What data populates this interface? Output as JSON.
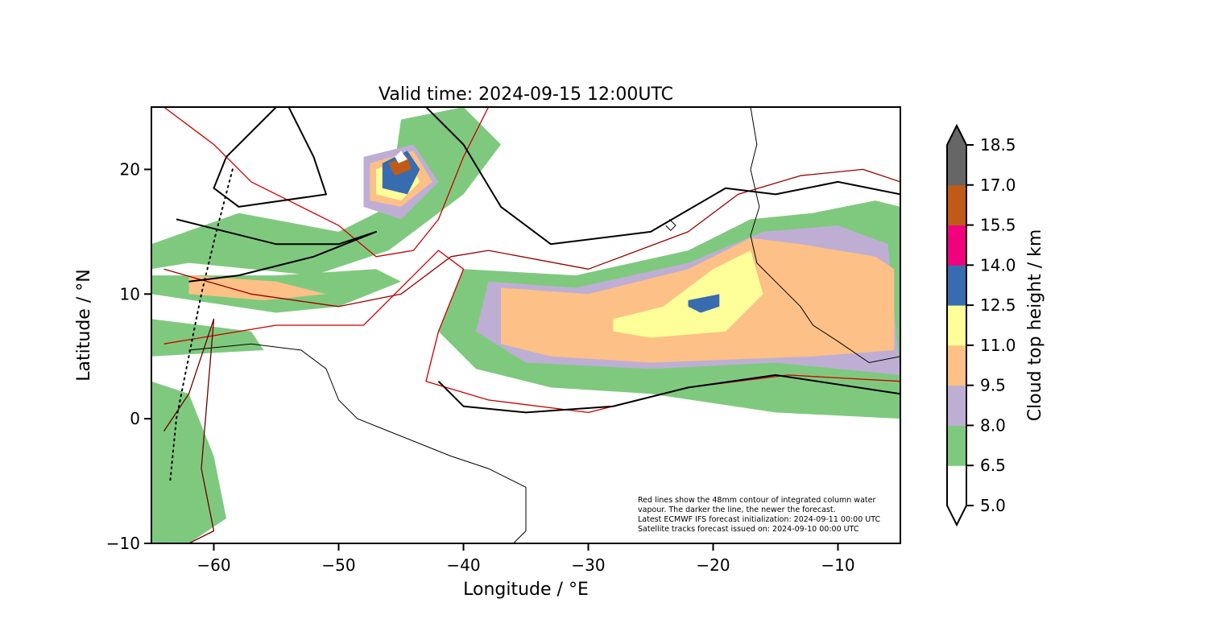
{
  "title": "Valid time: 2024-09-15 12:00UTC",
  "xlabel": "Longitude / °E",
  "ylabel": "Latitude / °N",
  "note_lines": [
    "Red lines show the 48mm contour of integrated column water",
    "vapour. The darker the line, the newer the forecast.",
    "Latest ECMWF IFS forecast initialization: 2024-09-11 00:00 UTC",
    "Satellite tracks forecast issued on: 2024-09-10 00:00 UTC"
  ],
  "chart_data": {
    "type": "heatmap",
    "title": "Valid time: 2024-09-15 12:00UTC",
    "xlabel": "Longitude / °E",
    "ylabel": "Latitude / °N",
    "xlim": [
      -65,
      -5
    ],
    "ylim": [
      -10,
      25
    ],
    "x_ticks": [
      -60,
      -50,
      -40,
      -30,
      -20,
      -10
    ],
    "y_ticks": [
      -10,
      0,
      10,
      20
    ],
    "x_tick_labels": [
      "−60",
      "−50",
      "−40",
      "−30",
      "−20",
      "−10"
    ],
    "y_tick_labels": [
      "−10",
      "0",
      "10",
      "20"
    ],
    "colorbar": {
      "label": "Cloud top height / km",
      "levels": [
        5.0,
        6.5,
        8.0,
        9.5,
        11.0,
        12.5,
        14.0,
        15.5,
        17.0,
        18.5
      ],
      "level_labels": [
        "5.0",
        "6.5",
        "8.0",
        "9.5",
        "11.0",
        "12.5",
        "14.0",
        "15.5",
        "17.0",
        "18.5"
      ],
      "colors": [
        "#ffffff",
        "#7fc97f",
        "#beaed4",
        "#fdc086",
        "#ffff99",
        "#386cb0",
        "#f0027f",
        "#bf5b17",
        "#666666"
      ],
      "extend": "both"
    },
    "cloud_regions": [
      {
        "level_km": 6.5,
        "polygon": [
          [
            -65,
            14
          ],
          [
            -58,
            16.5
          ],
          [
            -50,
            15
          ],
          [
            -46,
            17
          ],
          [
            -45,
            24
          ],
          [
            -40,
            25
          ],
          [
            -37,
            22
          ],
          [
            -40,
            18
          ],
          [
            -46,
            13.5
          ],
          [
            -52,
            11.5
          ],
          [
            -62,
            12.5
          ],
          [
            -65,
            12
          ]
        ]
      },
      {
        "level_km": 6.5,
        "polygon": [
          [
            -65,
            10
          ],
          [
            -55,
            8.5
          ],
          [
            -50,
            9
          ],
          [
            -45,
            11
          ],
          [
            -47,
            12
          ],
          [
            -55,
            11.5
          ],
          [
            -65,
            11.5
          ]
        ]
      },
      {
        "level_km": 6.5,
        "polygon": [
          [
            -65,
            8
          ],
          [
            -57,
            7
          ],
          [
            -56,
            5.5
          ],
          [
            -65,
            5
          ]
        ]
      },
      {
        "level_km": 6.5,
        "polygon": [
          [
            -65,
            3
          ],
          [
            -62,
            2
          ],
          [
            -60,
            -3
          ],
          [
            -59,
            -8
          ],
          [
            -62,
            -10
          ],
          [
            -65,
            -10
          ]
        ]
      },
      {
        "level_km": 6.5,
        "polygon": [
          [
            -40,
            12
          ],
          [
            -31,
            11.5
          ],
          [
            -22,
            13.5
          ],
          [
            -17,
            16
          ],
          [
            -12,
            16.5
          ],
          [
            -7,
            17.5
          ],
          [
            -5,
            17
          ],
          [
            -5,
            0
          ],
          [
            -15,
            0.5
          ],
          [
            -25,
            2
          ],
          [
            -33,
            2.5
          ],
          [
            -39,
            4
          ],
          [
            -42,
            7
          ]
        ]
      },
      {
        "level_km": 8.0,
        "polygon": [
          [
            -38,
            11
          ],
          [
            -31,
            10.5
          ],
          [
            -22,
            12.5
          ],
          [
            -16,
            15
          ],
          [
            -10,
            15.5
          ],
          [
            -6,
            14
          ],
          [
            -5,
            3.5
          ],
          [
            -15,
            4.5
          ],
          [
            -25,
            4
          ],
          [
            -35,
            4.5
          ],
          [
            -39,
            7
          ]
        ]
      },
      {
        "level_km": 8.0,
        "polygon": [
          [
            -48,
            21
          ],
          [
            -44,
            22
          ],
          [
            -42,
            19
          ],
          [
            -45,
            16
          ],
          [
            -48,
            17
          ]
        ]
      },
      {
        "level_km": 9.5,
        "polygon": [
          [
            -37,
            10.5
          ],
          [
            -30,
            10
          ],
          [
            -22,
            12
          ],
          [
            -17,
            14.5
          ],
          [
            -13,
            14
          ],
          [
            -7,
            13
          ],
          [
            -5.5,
            12
          ],
          [
            -5.5,
            5.5
          ],
          [
            -12,
            5
          ],
          [
            -25,
            4.5
          ],
          [
            -33,
            5
          ],
          [
            -37,
            6
          ]
        ]
      },
      {
        "level_km": 9.5,
        "polygon": [
          [
            -47.5,
            20.5
          ],
          [
            -44,
            21.5
          ],
          [
            -42.5,
            19
          ],
          [
            -45,
            17
          ],
          [
            -47.5,
            17.5
          ]
        ]
      },
      {
        "level_km": 9.5,
        "polygon": [
          [
            -62,
            11.5
          ],
          [
            -55,
            11
          ],
          [
            -51,
            10
          ],
          [
            -56,
            9.5
          ],
          [
            -62,
            10
          ]
        ]
      },
      {
        "level_km": 11.0,
        "polygon": [
          [
            -28,
            8
          ],
          [
            -24,
            9
          ],
          [
            -20,
            12
          ],
          [
            -17,
            13.5
          ],
          [
            -16,
            10
          ],
          [
            -19,
            7
          ],
          [
            -25,
            6.5
          ],
          [
            -28,
            7
          ]
        ]
      },
      {
        "level_km": 11.0,
        "polygon": [
          [
            -47,
            20
          ],
          [
            -44.5,
            21
          ],
          [
            -43.5,
            19
          ],
          [
            -45,
            17.5
          ],
          [
            -47,
            18
          ]
        ]
      },
      {
        "level_km": 12.5,
        "polygon": [
          [
            -46.5,
            20.5
          ],
          [
            -44.5,
            21.5
          ],
          [
            -43.5,
            20
          ],
          [
            -44.5,
            18
          ],
          [
            -46.5,
            18.5
          ]
        ]
      },
      {
        "level_km": 12.5,
        "polygon": [
          [
            -22,
            9.5
          ],
          [
            -19.5,
            10
          ],
          [
            -19.5,
            9
          ],
          [
            -21,
            8.5
          ],
          [
            -22,
            9
          ]
        ]
      },
      {
        "level_km": 15.5,
        "polygon": [
          [
            -46,
            20.5
          ],
          [
            -44.5,
            21
          ],
          [
            -44.2,
            20
          ],
          [
            -45.5,
            19.5
          ]
        ]
      },
      {
        "level_km": 18.5,
        "polygon": [
          [
            -45.5,
            21
          ],
          [
            -45,
            21.5
          ],
          [
            -44.5,
            20.8
          ],
          [
            -45.2,
            20.5
          ]
        ]
      }
    ],
    "overlays": [
      {
        "kind": "ECMWF IFS forecast 48mm integrated column water vapour contour",
        "color": "#cc0000",
        "points": [
          [
            -64,
            25
          ],
          [
            -60,
            22
          ],
          [
            -57,
            19
          ],
          [
            -50,
            15.5
          ],
          [
            -47,
            13
          ],
          [
            -44,
            13.5
          ],
          [
            -42,
            16
          ],
          [
            -40,
            21
          ],
          [
            -38,
            25
          ]
        ]
      },
      {
        "kind": "ECMWF IFS forecast 48mm integrated column water vapour contour",
        "color": "#990000",
        "points": [
          [
            -64,
            12
          ],
          [
            -57,
            10
          ],
          [
            -50,
            9
          ],
          [
            -45,
            10
          ],
          [
            -41,
            13
          ],
          [
            -38,
            13.5
          ],
          [
            -30,
            12
          ],
          [
            -22,
            15
          ],
          [
            -18,
            18
          ],
          [
            -13,
            19.5
          ],
          [
            -8,
            20
          ],
          [
            -5,
            19
          ]
        ]
      },
      {
        "kind": "ECMWF IFS forecast 48mm integrated column water vapour contour",
        "color": "#cc0000",
        "points": [
          [
            -64,
            6
          ],
          [
            -55,
            7.5
          ],
          [
            -48,
            7.5
          ],
          [
            -44,
            11.5
          ],
          [
            -42,
            13.5
          ],
          [
            -40,
            12
          ],
          [
            -42,
            7
          ],
          [
            -43,
            3
          ],
          [
            -38,
            1.5
          ],
          [
            -30,
            0.5
          ],
          [
            -22,
            2.5
          ],
          [
            -14,
            3.5
          ],
          [
            -5,
            3
          ]
        ]
      },
      {
        "kind": "ECMWF IFS forecast 48mm integrated column water vapour contour",
        "color": "#660000",
        "points": [
          [
            -64,
            -1
          ],
          [
            -62,
            2
          ],
          [
            -61,
            5
          ],
          [
            -60,
            8
          ],
          [
            -61,
            -4
          ],
          [
            -60,
            -9
          ],
          [
            -62,
            -10
          ]
        ]
      },
      {
        "kind": "ECMWF IFS forecast 48mm integrated column water vapour contour",
        "color": "#000000",
        "points": [
          [
            -63,
            16
          ],
          [
            -55,
            14
          ],
          [
            -50,
            14
          ],
          [
            -47,
            15
          ],
          [
            -52,
            13
          ],
          [
            -58,
            11.5
          ],
          [
            -62,
            11
          ]
        ]
      },
      {
        "kind": "ECMWF IFS forecast 48mm integrated column water vapour contour",
        "color": "#000000",
        "points": [
          [
            -42,
            3
          ],
          [
            -40,
            1
          ],
          [
            -35,
            0.5
          ],
          [
            -28,
            1
          ],
          [
            -22,
            2.5
          ],
          [
            -15,
            3.5
          ],
          [
            -5,
            2
          ]
        ]
      },
      {
        "kind": "ECMWF IFS forecast 48mm integrated column water vapour contour",
        "color": "#000000",
        "points": [
          [
            -44,
            26
          ],
          [
            -40,
            22
          ],
          [
            -37,
            17
          ],
          [
            -33,
            14
          ],
          [
            -25,
            15
          ],
          [
            -19,
            18.5
          ],
          [
            -15,
            18
          ],
          [
            -10,
            19
          ],
          [
            -5,
            18
          ]
        ]
      },
      {
        "kind": "ECMWF IFS forecast 48mm integrated column water vapour contour",
        "color": "#000000",
        "points": [
          [
            -54,
            25
          ],
          [
            -52,
            21
          ],
          [
            -51,
            18
          ],
          [
            -58,
            17
          ],
          [
            -60,
            18.5
          ],
          [
            -59,
            21
          ],
          [
            -55,
            25
          ]
        ]
      },
      {
        "kind": "Satellite track forecast",
        "color": "#000000",
        "dash": true,
        "points": [
          [
            -58.5,
            20
          ],
          [
            -59.8,
            15
          ],
          [
            -61,
            10
          ],
          [
            -62,
            5
          ],
          [
            -63,
            0
          ],
          [
            -63.5,
            -5
          ]
        ]
      }
    ]
  },
  "coastlines": [
    {
      "name": "South America",
      "points": [
        [
          -62,
          5.5
        ],
        [
          -57,
          6
        ],
        [
          -53,
          5.5
        ],
        [
          -51,
          4
        ],
        [
          -50,
          1.5
        ],
        [
          -48.5,
          0
        ],
        [
          -46,
          -1
        ],
        [
          -41,
          -3
        ],
        [
          -38,
          -4
        ],
        [
          -35,
          -5.5
        ],
        [
          -35,
          -9
        ],
        [
          -36,
          -10
        ]
      ]
    },
    {
      "name": "Africa",
      "points": [
        [
          -17,
          25
        ],
        [
          -16.5,
          22
        ],
        [
          -17,
          20
        ],
        [
          -16.3,
          17
        ],
        [
          -17,
          14.7
        ],
        [
          -16.5,
          12.5
        ],
        [
          -15,
          11
        ],
        [
          -13,
          9
        ],
        [
          -12,
          7.5
        ],
        [
          -10,
          6.2
        ],
        [
          -7.5,
          4.5
        ],
        [
          -5,
          5
        ]
      ]
    },
    {
      "name": "Cabo Verde island",
      "points": [
        [
          -23.5,
          16
        ],
        [
          -23,
          15.5
        ],
        [
          -23.4,
          15.1
        ],
        [
          -23.8,
          15.5
        ]
      ]
    }
  ]
}
